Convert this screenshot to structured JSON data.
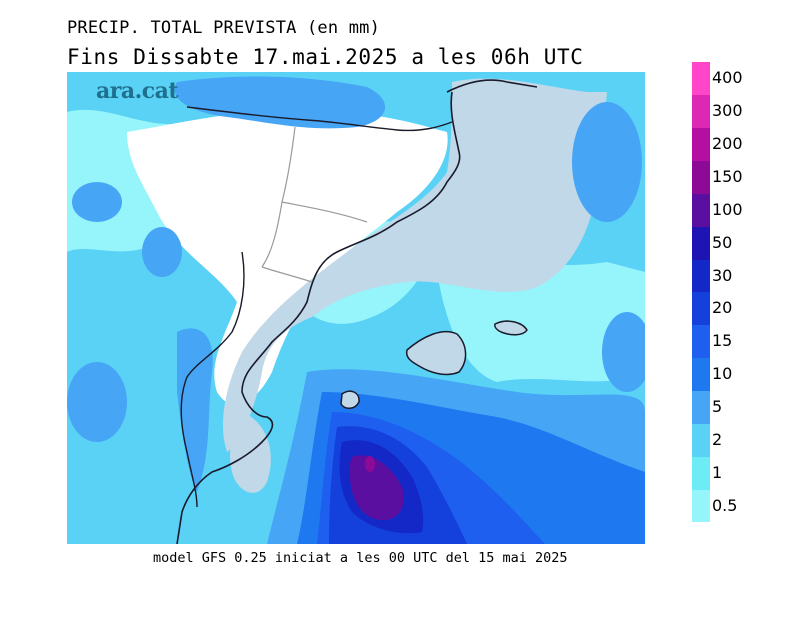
{
  "title": {
    "line1": "PRECIP. TOTAL PREVISTA (en mm)",
    "line2": "Fins Dissabte  17.mai.2025 a les 06h UTC"
  },
  "logo": "ara.cat",
  "caption": "model GFS 0.25 iniciat a les 00 UTC del 15 mai 2025",
  "legend": {
    "levels": [
      "0.5",
      "1",
      "2",
      "5",
      "10",
      "15",
      "20",
      "30",
      "50",
      "100",
      "150",
      "200",
      "300",
      "400"
    ],
    "colors": [
      "#96f5fa",
      "#6eecf5",
      "#5ad2f5",
      "#46a5f5",
      "#1e78f0",
      "#1e5ff0",
      "#1440dc",
      "#1428c8",
      "#1e14b4",
      "#5a0fa0",
      "#8c0a96",
      "#b40fa0",
      "#dc28b4",
      "#ff46c8"
    ]
  },
  "map": {
    "colors": {
      "land_dry": "#ffffff",
      "sea_dry": "#c0d8e8",
      "light": "#96f5fa",
      "cyan": "#6eecf5",
      "sky": "#5ad2f5",
      "blue": "#46a5f5",
      "medium": "#1e78f0",
      "deep": "#1e5ff0",
      "deeper": "#1440dc",
      "navy": "#1428c8",
      "indigo": "#1e14b4",
      "purple": "#5a0fa0",
      "magenta": "#8c0a96"
    }
  }
}
